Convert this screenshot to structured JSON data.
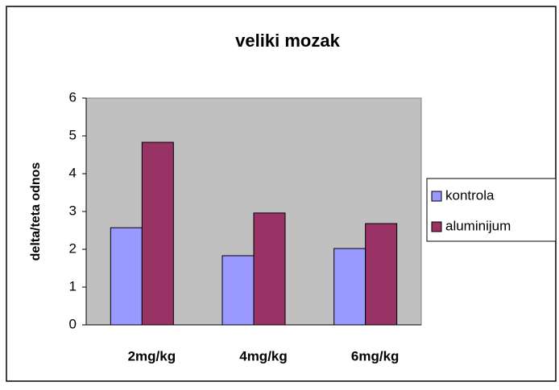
{
  "chart_data": {
    "type": "bar",
    "title": "veliki mozak",
    "y_label": "delta/teta odnos",
    "categories": [
      "2mg/kg",
      "4mg/kg",
      "6mg/kg"
    ],
    "series": [
      {
        "name": "kontrola",
        "color": "#9999ff",
        "values": [
          2.57,
          1.83,
          2.02
        ]
      },
      {
        "name": "aluminijum",
        "color": "#993366",
        "values": [
          4.83,
          2.96,
          2.68
        ]
      }
    ],
    "ylim": [
      0,
      6
    ],
    "yticks": [
      0,
      1,
      2,
      3,
      4,
      5,
      6
    ],
    "grid": false,
    "legend": "right"
  }
}
